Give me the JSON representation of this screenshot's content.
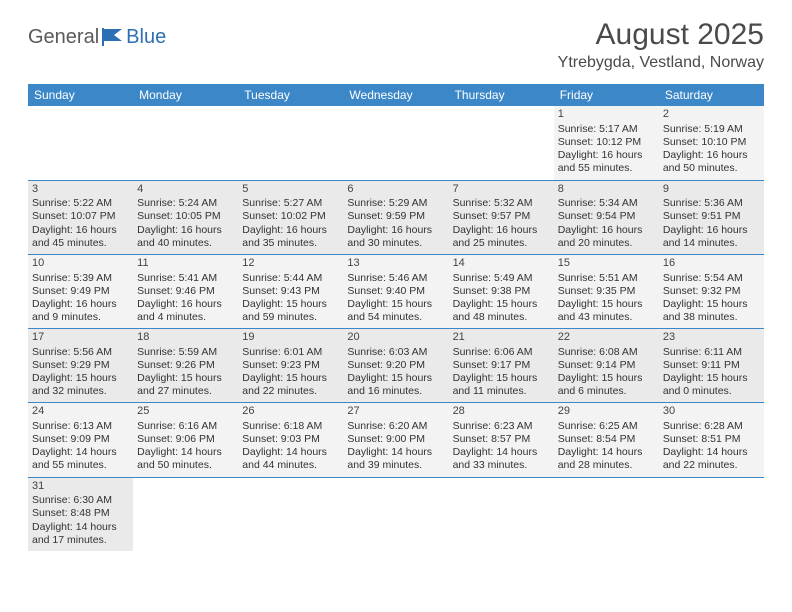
{
  "logo": {
    "text1": "General",
    "text2": "Blue"
  },
  "title": "August 2025",
  "location": "Ytrebygda, Vestland, Norway",
  "colors": {
    "header_bg": "#3b87c8",
    "header_text": "#ffffff",
    "row_odd": "#f3f3f3",
    "row_even": "#eaeaea",
    "border": "#3b87c8"
  },
  "daynames": [
    "Sunday",
    "Monday",
    "Tuesday",
    "Wednesday",
    "Thursday",
    "Friday",
    "Saturday"
  ],
  "weeks": [
    [
      null,
      null,
      null,
      null,
      null,
      {
        "n": "1",
        "sr": "Sunrise: 5:17 AM",
        "ss": "Sunset: 10:12 PM",
        "d1": "Daylight: 16 hours",
        "d2": "and 55 minutes."
      },
      {
        "n": "2",
        "sr": "Sunrise: 5:19 AM",
        "ss": "Sunset: 10:10 PM",
        "d1": "Daylight: 16 hours",
        "d2": "and 50 minutes."
      }
    ],
    [
      {
        "n": "3",
        "sr": "Sunrise: 5:22 AM",
        "ss": "Sunset: 10:07 PM",
        "d1": "Daylight: 16 hours",
        "d2": "and 45 minutes."
      },
      {
        "n": "4",
        "sr": "Sunrise: 5:24 AM",
        "ss": "Sunset: 10:05 PM",
        "d1": "Daylight: 16 hours",
        "d2": "and 40 minutes."
      },
      {
        "n": "5",
        "sr": "Sunrise: 5:27 AM",
        "ss": "Sunset: 10:02 PM",
        "d1": "Daylight: 16 hours",
        "d2": "and 35 minutes."
      },
      {
        "n": "6",
        "sr": "Sunrise: 5:29 AM",
        "ss": "Sunset: 9:59 PM",
        "d1": "Daylight: 16 hours",
        "d2": "and 30 minutes."
      },
      {
        "n": "7",
        "sr": "Sunrise: 5:32 AM",
        "ss": "Sunset: 9:57 PM",
        "d1": "Daylight: 16 hours",
        "d2": "and 25 minutes."
      },
      {
        "n": "8",
        "sr": "Sunrise: 5:34 AM",
        "ss": "Sunset: 9:54 PM",
        "d1": "Daylight: 16 hours",
        "d2": "and 20 minutes."
      },
      {
        "n": "9",
        "sr": "Sunrise: 5:36 AM",
        "ss": "Sunset: 9:51 PM",
        "d1": "Daylight: 16 hours",
        "d2": "and 14 minutes."
      }
    ],
    [
      {
        "n": "10",
        "sr": "Sunrise: 5:39 AM",
        "ss": "Sunset: 9:49 PM",
        "d1": "Daylight: 16 hours",
        "d2": "and 9 minutes."
      },
      {
        "n": "11",
        "sr": "Sunrise: 5:41 AM",
        "ss": "Sunset: 9:46 PM",
        "d1": "Daylight: 16 hours",
        "d2": "and 4 minutes."
      },
      {
        "n": "12",
        "sr": "Sunrise: 5:44 AM",
        "ss": "Sunset: 9:43 PM",
        "d1": "Daylight: 15 hours",
        "d2": "and 59 minutes."
      },
      {
        "n": "13",
        "sr": "Sunrise: 5:46 AM",
        "ss": "Sunset: 9:40 PM",
        "d1": "Daylight: 15 hours",
        "d2": "and 54 minutes."
      },
      {
        "n": "14",
        "sr": "Sunrise: 5:49 AM",
        "ss": "Sunset: 9:38 PM",
        "d1": "Daylight: 15 hours",
        "d2": "and 48 minutes."
      },
      {
        "n": "15",
        "sr": "Sunrise: 5:51 AM",
        "ss": "Sunset: 9:35 PM",
        "d1": "Daylight: 15 hours",
        "d2": "and 43 minutes."
      },
      {
        "n": "16",
        "sr": "Sunrise: 5:54 AM",
        "ss": "Sunset: 9:32 PM",
        "d1": "Daylight: 15 hours",
        "d2": "and 38 minutes."
      }
    ],
    [
      {
        "n": "17",
        "sr": "Sunrise: 5:56 AM",
        "ss": "Sunset: 9:29 PM",
        "d1": "Daylight: 15 hours",
        "d2": "and 32 minutes."
      },
      {
        "n": "18",
        "sr": "Sunrise: 5:59 AM",
        "ss": "Sunset: 9:26 PM",
        "d1": "Daylight: 15 hours",
        "d2": "and 27 minutes."
      },
      {
        "n": "19",
        "sr": "Sunrise: 6:01 AM",
        "ss": "Sunset: 9:23 PM",
        "d1": "Daylight: 15 hours",
        "d2": "and 22 minutes."
      },
      {
        "n": "20",
        "sr": "Sunrise: 6:03 AM",
        "ss": "Sunset: 9:20 PM",
        "d1": "Daylight: 15 hours",
        "d2": "and 16 minutes."
      },
      {
        "n": "21",
        "sr": "Sunrise: 6:06 AM",
        "ss": "Sunset: 9:17 PM",
        "d1": "Daylight: 15 hours",
        "d2": "and 11 minutes."
      },
      {
        "n": "22",
        "sr": "Sunrise: 6:08 AM",
        "ss": "Sunset: 9:14 PM",
        "d1": "Daylight: 15 hours",
        "d2": "and 6 minutes."
      },
      {
        "n": "23",
        "sr": "Sunrise: 6:11 AM",
        "ss": "Sunset: 9:11 PM",
        "d1": "Daylight: 15 hours",
        "d2": "and 0 minutes."
      }
    ],
    [
      {
        "n": "24",
        "sr": "Sunrise: 6:13 AM",
        "ss": "Sunset: 9:09 PM",
        "d1": "Daylight: 14 hours",
        "d2": "and 55 minutes."
      },
      {
        "n": "25",
        "sr": "Sunrise: 6:16 AM",
        "ss": "Sunset: 9:06 PM",
        "d1": "Daylight: 14 hours",
        "d2": "and 50 minutes."
      },
      {
        "n": "26",
        "sr": "Sunrise: 6:18 AM",
        "ss": "Sunset: 9:03 PM",
        "d1": "Daylight: 14 hours",
        "d2": "and 44 minutes."
      },
      {
        "n": "27",
        "sr": "Sunrise: 6:20 AM",
        "ss": "Sunset: 9:00 PM",
        "d1": "Daylight: 14 hours",
        "d2": "and 39 minutes."
      },
      {
        "n": "28",
        "sr": "Sunrise: 6:23 AM",
        "ss": "Sunset: 8:57 PM",
        "d1": "Daylight: 14 hours",
        "d2": "and 33 minutes."
      },
      {
        "n": "29",
        "sr": "Sunrise: 6:25 AM",
        "ss": "Sunset: 8:54 PM",
        "d1": "Daylight: 14 hours",
        "d2": "and 28 minutes."
      },
      {
        "n": "30",
        "sr": "Sunrise: 6:28 AM",
        "ss": "Sunset: 8:51 PM",
        "d1": "Daylight: 14 hours",
        "d2": "and 22 minutes."
      }
    ],
    [
      {
        "n": "31",
        "sr": "Sunrise: 6:30 AM",
        "ss": "Sunset: 8:48 PM",
        "d1": "Daylight: 14 hours",
        "d2": "and 17 minutes."
      },
      null,
      null,
      null,
      null,
      null,
      null
    ]
  ]
}
